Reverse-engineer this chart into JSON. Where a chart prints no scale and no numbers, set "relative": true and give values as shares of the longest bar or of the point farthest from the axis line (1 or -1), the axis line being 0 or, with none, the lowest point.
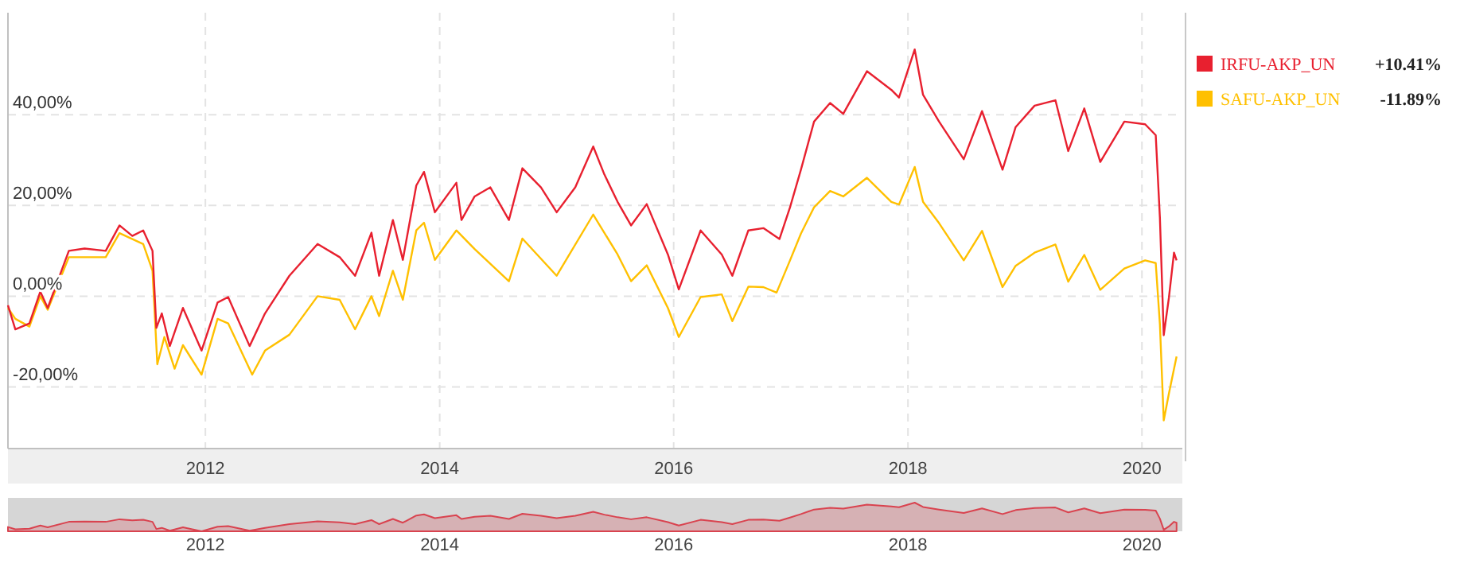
{
  "chart_data": [
    {
      "type": "line",
      "xlim": [
        "2010-04-25",
        "2020-05-06"
      ],
      "xticks": [
        "2012",
        "2014",
        "2016",
        "2018",
        "2020"
      ],
      "ylim": [
        -33.6,
        62.5
      ],
      "yticks": [
        {
          "value": -20,
          "label": "-20,00%"
        },
        {
          "value": 0,
          "label": "0,00%"
        },
        {
          "value": 20,
          "label": "20,00%"
        },
        {
          "value": 40,
          "label": "40,00%"
        }
      ],
      "grid": true,
      "legend": "right",
      "annotations": [
        "+10.41%",
        "-11.89%"
      ],
      "series": [
        {
          "name": "IRFU-AKP_UN",
          "color": "#e8202f",
          "x": [
            "2010-04-25",
            "2010-05-18",
            "2010-07-01",
            "2010-08-04",
            "2010-08-27",
            "2010-11-01",
            "2010-12-20",
            "2011-02-24",
            "2011-04-08",
            "2011-05-18",
            "2011-06-21",
            "2011-07-20",
            "2011-08-01",
            "2011-08-18",
            "2011-09-12",
            "2011-10-23",
            "2011-12-20",
            "2012-02-08",
            "2012-03-12",
            "2012-05-18",
            "2012-07-05",
            "2012-09-19",
            "2012-12-16",
            "2013-02-23",
            "2013-04-12",
            "2013-06-02",
            "2013-06-26",
            "2013-08-08",
            "2013-09-08",
            "2013-10-20",
            "2013-11-13",
            "2013-12-17",
            "2014-02-22",
            "2014-03-10",
            "2014-04-20",
            "2014-06-08",
            "2014-08-05",
            "2014-09-16",
            "2014-11-13",
            "2015-01-01",
            "2015-02-28",
            "2015-04-25",
            "2015-05-30",
            "2015-07-10",
            "2015-08-21",
            "2015-10-09",
            "2015-12-14",
            "2016-01-17",
            "2016-03-25",
            "2016-05-30",
            "2016-07-02",
            "2016-08-21",
            "2016-10-07",
            "2016-11-26",
            "2016-12-29",
            "2017-02-01",
            "2017-03-14",
            "2017-05-03",
            "2017-06-13",
            "2017-08-26",
            "2017-11-10",
            "2017-12-04",
            "2018-01-22",
            "2018-02-17",
            "2018-04-08",
            "2018-06-24",
            "2018-08-20",
            "2018-10-23",
            "2018-12-03",
            "2019-01-31",
            "2019-04-06",
            "2019-05-16",
            "2019-07-05",
            "2019-08-24",
            "2019-11-07",
            "2020-01-11",
            "2020-02-13",
            "2020-02-26",
            "2020-03-09",
            "2020-03-25",
            "2020-04-10",
            "2020-04-18"
          ],
          "values": [
            -2,
            -7.3,
            -6,
            1,
            -2.6,
            10,
            10.5,
            10,
            15.6,
            13.3,
            14.5,
            10,
            -7,
            -3.8,
            -11,
            -2.6,
            -12,
            -1.4,
            -0.2,
            -11,
            -3.8,
            4.5,
            11.5,
            8.6,
            4.5,
            14,
            4.5,
            16.8,
            8,
            24.4,
            27.4,
            18.5,
            25,
            16.8,
            22,
            24,
            16.8,
            28.2,
            24,
            18.5,
            24,
            33,
            26.8,
            20.8,
            15.6,
            20.3,
            9.2,
            1.5,
            14.5,
            9.2,
            4.5,
            14.5,
            15,
            12.6,
            19.6,
            27.9,
            38.5,
            42.6,
            40.2,
            49.6,
            45.5,
            43.8,
            54.4,
            44.4,
            38.5,
            30.2,
            40.8,
            27.9,
            37.3,
            42,
            43.2,
            32,
            41.4,
            29.6,
            38.5,
            37.9,
            35.5,
            17.3,
            -8.6,
            -0.4,
            9.6,
            7.9
          ]
        },
        {
          "name": "SAFU-AKP_UN",
          "color": "#ffc000",
          "x": [
            "2010-04-25",
            "2010-05-18",
            "2010-07-01",
            "2010-08-04",
            "2010-08-27",
            "2010-11-01",
            "2011-02-24",
            "2011-04-08",
            "2011-06-21",
            "2011-07-20",
            "2011-08-04",
            "2011-08-26",
            "2011-09-27",
            "2011-10-23",
            "2011-12-20",
            "2012-02-08",
            "2012-03-12",
            "2012-05-26",
            "2012-07-05",
            "2012-09-19",
            "2012-12-16",
            "2013-02-23",
            "2013-04-12",
            "2013-06-02",
            "2013-06-26",
            "2013-08-08",
            "2013-09-08",
            "2013-10-20",
            "2013-11-13",
            "2013-12-17",
            "2014-02-22",
            "2014-04-20",
            "2014-08-05",
            "2014-09-16",
            "2015-01-01",
            "2015-04-25",
            "2015-07-10",
            "2015-08-21",
            "2015-10-09",
            "2015-12-14",
            "2016-01-17",
            "2016-03-25",
            "2016-05-30",
            "2016-07-02",
            "2016-08-21",
            "2016-10-07",
            "2016-11-17",
            "2016-12-29",
            "2017-02-01",
            "2017-03-14",
            "2017-05-03",
            "2017-06-13",
            "2017-08-26",
            "2017-11-10",
            "2017-12-04",
            "2018-01-22",
            "2018-02-17",
            "2018-04-08",
            "2018-06-24",
            "2018-08-20",
            "2018-10-23",
            "2018-12-03",
            "2019-01-31",
            "2019-04-06",
            "2019-05-16",
            "2019-07-05",
            "2019-08-24",
            "2019-11-07",
            "2020-01-11",
            "2020-02-13",
            "2020-02-26",
            "2020-03-09",
            "2020-03-25",
            "2020-04-18"
          ],
          "values": [
            -2.6,
            -5,
            -6.7,
            0,
            -3,
            8.6,
            8.6,
            13.9,
            11.5,
            5.6,
            -15,
            -9,
            -16,
            -10.8,
            -17.3,
            -5,
            -6,
            -17.3,
            -12,
            -8.5,
            0,
            -0.8,
            -7.3,
            0,
            -4.4,
            5.6,
            -0.8,
            14.5,
            16.2,
            8,
            14.5,
            10.4,
            3.3,
            12.7,
            4.5,
            18,
            9.2,
            3.3,
            6.8,
            -2.6,
            -9,
            -0.2,
            0.4,
            -5.5,
            2.1,
            2,
            0.8,
            7.9,
            13.8,
            19.6,
            23.2,
            22,
            26.1,
            20.8,
            20.2,
            28.5,
            20.8,
            16.1,
            7.9,
            14.4,
            2,
            6.7,
            9.6,
            11.4,
            3.2,
            9.1,
            1.4,
            6.1,
            7.9,
            7.3,
            -6.2,
            -27.4,
            -21.5,
            -13.3
          ]
        }
      ]
    },
    {
      "type": "area",
      "relative": true,
      "xlim": [
        "2010-04-25",
        "2020-05-06"
      ],
      "xticks": [
        "2012",
        "2014",
        "2016",
        "2018",
        "2020"
      ],
      "tick_labels": "x",
      "series": [
        {
          "color": "#d9434f",
          "x": [
            "2010-04-25",
            "2010-05-18",
            "2010-07-01",
            "2010-08-04",
            "2010-08-27",
            "2010-11-01",
            "2010-12-20",
            "2011-02-24",
            "2011-04-08",
            "2011-05-18",
            "2011-06-21",
            "2011-07-20",
            "2011-08-01",
            "2011-08-18",
            "2011-09-12",
            "2011-10-23",
            "2011-12-20",
            "2012-02-08",
            "2012-03-12",
            "2012-05-18",
            "2012-07-05",
            "2012-09-19",
            "2012-12-16",
            "2013-02-23",
            "2013-04-12",
            "2013-06-02",
            "2013-06-26",
            "2013-08-08",
            "2013-09-08",
            "2013-10-20",
            "2013-11-13",
            "2013-12-17",
            "2014-02-22",
            "2014-03-10",
            "2014-04-20",
            "2014-06-08",
            "2014-08-05",
            "2014-09-16",
            "2014-11-13",
            "2015-01-01",
            "2015-02-28",
            "2015-04-25",
            "2015-05-30",
            "2015-07-10",
            "2015-08-21",
            "2015-10-09",
            "2015-12-14",
            "2016-01-17",
            "2016-03-25",
            "2016-05-30",
            "2016-07-02",
            "2016-08-21",
            "2016-10-07",
            "2016-11-26",
            "2016-12-29",
            "2017-02-01",
            "2017-03-14",
            "2017-05-03",
            "2017-06-13",
            "2017-08-26",
            "2017-11-10",
            "2017-12-04",
            "2018-01-22",
            "2018-02-17",
            "2018-04-08",
            "2018-06-24",
            "2018-08-20",
            "2018-10-23",
            "2018-12-03",
            "2019-01-31",
            "2019-04-06",
            "2019-05-16",
            "2019-07-05",
            "2019-08-24",
            "2019-11-07",
            "2020-01-11",
            "2020-02-13",
            "2020-02-26",
            "2020-03-09",
            "2020-03-25",
            "2020-04-10",
            "2020-04-18"
          ],
          "values": [
            0.15,
            0.07,
            0.09,
            0.2,
            0.14,
            0.33,
            0.34,
            0.33,
            0.42,
            0.38,
            0.4,
            0.33,
            0.08,
            0.12,
            0.02,
            0.14,
            0,
            0.16,
            0.18,
            0.02,
            0.12,
            0.25,
            0.35,
            0.31,
            0.25,
            0.39,
            0.25,
            0.43,
            0.3,
            0.55,
            0.59,
            0.46,
            0.56,
            0.43,
            0.51,
            0.54,
            0.43,
            0.61,
            0.54,
            0.46,
            0.54,
            0.68,
            0.58,
            0.49,
            0.42,
            0.49,
            0.32,
            0.2,
            0.4,
            0.32,
            0.25,
            0.4,
            0.41,
            0.37,
            0.48,
            0.6,
            0.76,
            0.82,
            0.79,
            0.93,
            0.87,
            0.84,
            1,
            0.85,
            0.76,
            0.64,
            0.8,
            0.6,
            0.74,
            0.81,
            0.83,
            0.66,
            0.8,
            0.63,
            0.76,
            0.75,
            0.72,
            0.44,
            0.05,
            0.17,
            0.33,
            0.3
          ]
        }
      ]
    }
  ]
}
